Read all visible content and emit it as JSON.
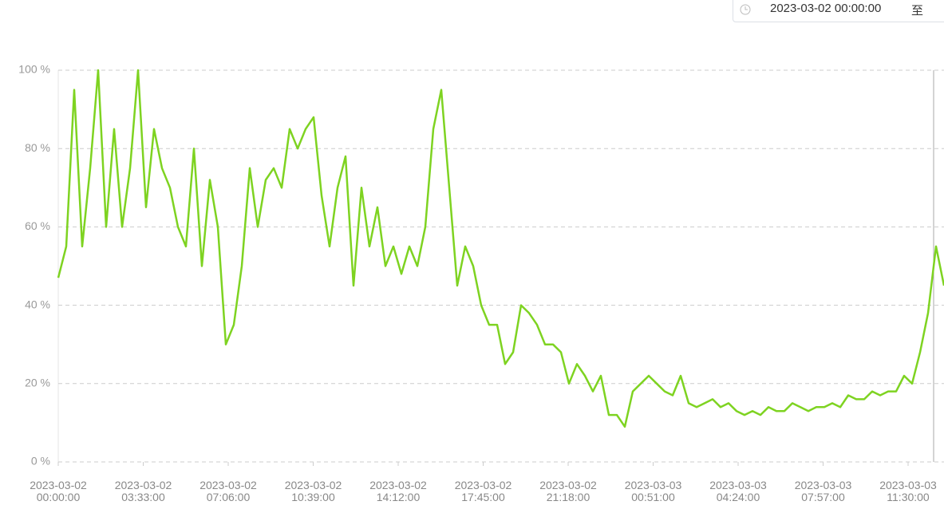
{
  "date_picker": {
    "start": "2023-03-02 00:00:00",
    "separator": "至"
  },
  "chart_data": {
    "type": "line",
    "color": "#7ed321",
    "grid": true,
    "xlim": [
      "2023-03-02 00:00:00",
      "2023-03-03 13:00:00"
    ],
    "ylim": [
      0,
      100
    ],
    "yticks": [
      {
        "value": 0,
        "label": "0 %"
      },
      {
        "value": 20,
        "label": "20 %"
      },
      {
        "value": 40,
        "label": "40 %"
      },
      {
        "value": 60,
        "label": "60 %"
      },
      {
        "value": 80,
        "label": "80 %"
      },
      {
        "value": 100,
        "label": "100 %"
      }
    ],
    "xticks": [
      "2023-03-02 00:00:00",
      "2023-03-02 03:33:00",
      "2023-03-02 07:06:00",
      "2023-03-02 10:39:00",
      "2023-03-02 14:12:00",
      "2023-03-02 17:45:00",
      "2023-03-02 21:18:00",
      "2023-03-03 00:51:00",
      "2023-03-03 04:24:00",
      "2023-03-03 07:57:00",
      "2023-03-03 11:30:00"
    ],
    "x": [
      "2023-03-02 00:00:00",
      "2023-03-02 00:20:00",
      "2023-03-02 00:40:00",
      "2023-03-02 01:00:00",
      "2023-03-02 01:20:00",
      "2023-03-02 01:40:00",
      "2023-03-02 02:00:00",
      "2023-03-02 02:20:00",
      "2023-03-02 02:40:00",
      "2023-03-02 03:00:00",
      "2023-03-02 03:20:00",
      "2023-03-02 03:40:00",
      "2023-03-02 04:00:00",
      "2023-03-02 04:20:00",
      "2023-03-02 04:40:00",
      "2023-03-02 05:00:00",
      "2023-03-02 05:20:00",
      "2023-03-02 05:40:00",
      "2023-03-02 06:00:00",
      "2023-03-02 06:20:00",
      "2023-03-02 06:40:00",
      "2023-03-02 07:00:00",
      "2023-03-02 07:20:00",
      "2023-03-02 07:40:00",
      "2023-03-02 08:00:00",
      "2023-03-02 08:20:00",
      "2023-03-02 08:40:00",
      "2023-03-02 09:00:00",
      "2023-03-02 09:20:00",
      "2023-03-02 09:40:00",
      "2023-03-02 10:00:00",
      "2023-03-02 10:20:00",
      "2023-03-02 10:40:00",
      "2023-03-02 11:00:00",
      "2023-03-02 11:20:00",
      "2023-03-02 11:40:00",
      "2023-03-02 12:00:00",
      "2023-03-02 12:20:00",
      "2023-03-02 12:40:00",
      "2023-03-02 13:00:00",
      "2023-03-02 13:20:00",
      "2023-03-02 13:40:00",
      "2023-03-02 14:00:00",
      "2023-03-02 14:20:00",
      "2023-03-02 14:40:00",
      "2023-03-02 15:00:00",
      "2023-03-02 15:20:00",
      "2023-03-02 15:40:00",
      "2023-03-02 16:00:00",
      "2023-03-02 16:20:00",
      "2023-03-02 16:40:00",
      "2023-03-02 17:00:00",
      "2023-03-02 17:20:00",
      "2023-03-02 17:40:00",
      "2023-03-02 18:00:00",
      "2023-03-02 18:20:00",
      "2023-03-02 18:40:00",
      "2023-03-02 19:00:00",
      "2023-03-02 19:20:00",
      "2023-03-02 19:40:00",
      "2023-03-02 20:00:00",
      "2023-03-02 20:20:00",
      "2023-03-02 20:40:00",
      "2023-03-02 21:00:00",
      "2023-03-02 21:20:00",
      "2023-03-02 21:40:00",
      "2023-03-02 22:00:00",
      "2023-03-02 22:20:00",
      "2023-03-02 22:40:00",
      "2023-03-02 23:00:00",
      "2023-03-02 23:20:00",
      "2023-03-02 23:40:00",
      "2023-03-03 00:00:00",
      "2023-03-03 00:20:00",
      "2023-03-03 00:40:00",
      "2023-03-03 01:00:00",
      "2023-03-03 01:20:00",
      "2023-03-03 01:40:00",
      "2023-03-03 02:00:00",
      "2023-03-03 02:20:00",
      "2023-03-03 02:40:00",
      "2023-03-03 03:00:00",
      "2023-03-03 03:20:00",
      "2023-03-03 03:40:00",
      "2023-03-03 04:00:00",
      "2023-03-03 04:20:00",
      "2023-03-03 04:40:00",
      "2023-03-03 05:00:00",
      "2023-03-03 05:20:00",
      "2023-03-03 05:40:00",
      "2023-03-03 06:00:00",
      "2023-03-03 06:20:00",
      "2023-03-03 06:40:00",
      "2023-03-03 07:00:00",
      "2023-03-03 07:20:00",
      "2023-03-03 07:40:00",
      "2023-03-03 08:00:00",
      "2023-03-03 08:20:00",
      "2023-03-03 08:40:00",
      "2023-03-03 09:00:00",
      "2023-03-03 09:20:00",
      "2023-03-03 09:40:00",
      "2023-03-03 10:00:00",
      "2023-03-03 10:20:00",
      "2023-03-03 10:40:00",
      "2023-03-03 11:00:00",
      "2023-03-03 11:20:00",
      "2023-03-03 11:40:00",
      "2023-03-03 12:00:00",
      "2023-03-03 12:20:00",
      "2023-03-03 12:40:00",
      "2023-03-03 13:00:00"
    ],
    "values": [
      47,
      55,
      95,
      55,
      75,
      100,
      60,
      85,
      60,
      75,
      100,
      65,
      85,
      75,
      70,
      60,
      55,
      80,
      50,
      72,
      60,
      30,
      35,
      50,
      75,
      60,
      72,
      75,
      70,
      85,
      80,
      85,
      88,
      68,
      55,
      70,
      78,
      45,
      70,
      55,
      65,
      50,
      55,
      48,
      55,
      50,
      60,
      85,
      95,
      70,
      45,
      55,
      50,
      40,
      35,
      35,
      25,
      28,
      40,
      38,
      35,
      30,
      30,
      28,
      20,
      25,
      22,
      18,
      22,
      12,
      12,
      9,
      18,
      20,
      22,
      20,
      18,
      17,
      22,
      15,
      14,
      15,
      16,
      14,
      15,
      13,
      12,
      13,
      12,
      14,
      13,
      13,
      15,
      14,
      13,
      14,
      14,
      15,
      14,
      17,
      16,
      16,
      18,
      17,
      18,
      18,
      22,
      20,
      28,
      38,
      55,
      45
    ]
  }
}
